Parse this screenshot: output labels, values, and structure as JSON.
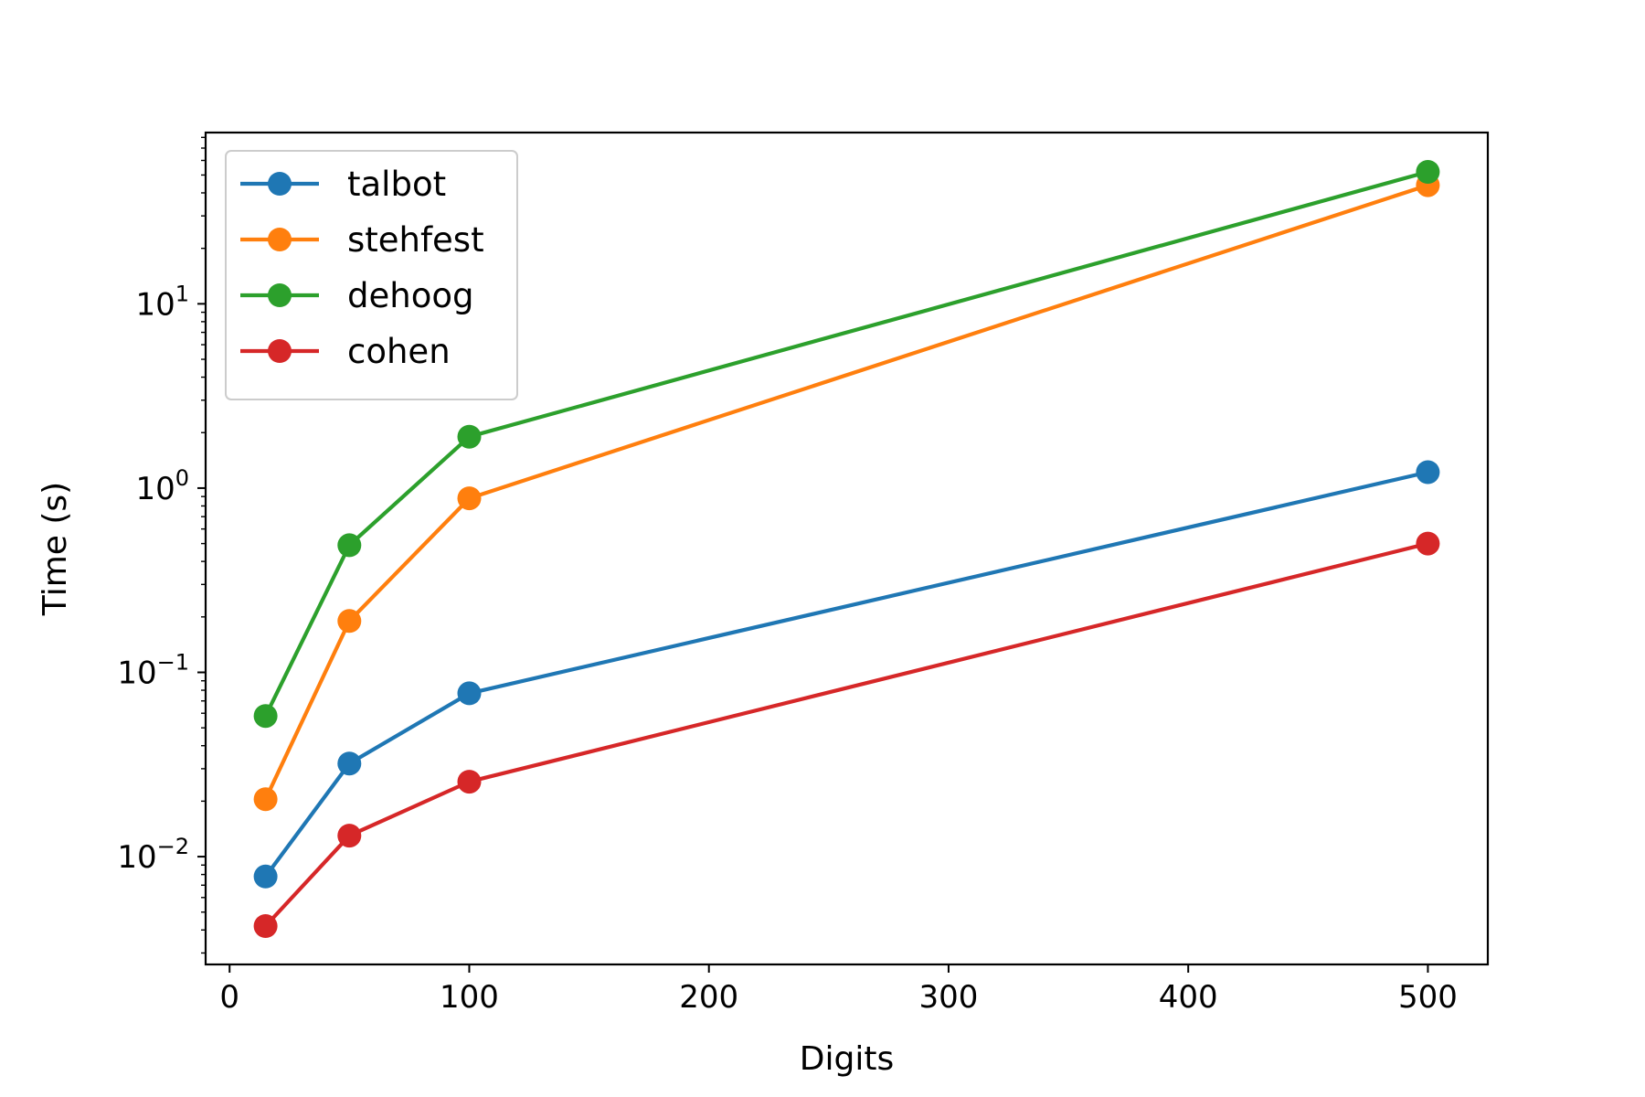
{
  "chart_data": {
    "type": "line",
    "title": "",
    "xlabel": "Digits",
    "ylabel": "Time (s)",
    "x": [
      15,
      50,
      100,
      500
    ],
    "series": [
      {
        "name": "talbot",
        "color": "#1f77b4",
        "values": [
          0.0078,
          0.032,
          0.077,
          1.22
        ]
      },
      {
        "name": "stehfest",
        "color": "#ff7f0e",
        "values": [
          0.0205,
          0.19,
          0.88,
          44.0
        ]
      },
      {
        "name": "dehoog",
        "color": "#2ca02c",
        "values": [
          0.058,
          0.49,
          1.9,
          52.0
        ]
      },
      {
        "name": "cohen",
        "color": "#d62728",
        "values": [
          0.0042,
          0.013,
          0.0255,
          0.5
        ]
      }
    ],
    "xlim": [
      -10,
      525
    ],
    "ylim": [
      0.0026,
      85
    ],
    "yscale": "log",
    "xticks": [
      {
        "value": 0,
        "label": "0"
      },
      {
        "value": 100,
        "label": "100"
      },
      {
        "value": 200,
        "label": "200"
      },
      {
        "value": 300,
        "label": "300"
      },
      {
        "value": 400,
        "label": "400"
      },
      {
        "value": 500,
        "label": "500"
      }
    ],
    "yticks": [
      {
        "value": 0.01,
        "base": "10",
        "exp": "−2"
      },
      {
        "value": 0.1,
        "base": "10",
        "exp": "−1"
      },
      {
        "value": 1,
        "base": "10",
        "exp": "0"
      },
      {
        "value": 10,
        "base": "10",
        "exp": "1"
      }
    ],
    "grid": false,
    "legend_position": "upper-left"
  }
}
